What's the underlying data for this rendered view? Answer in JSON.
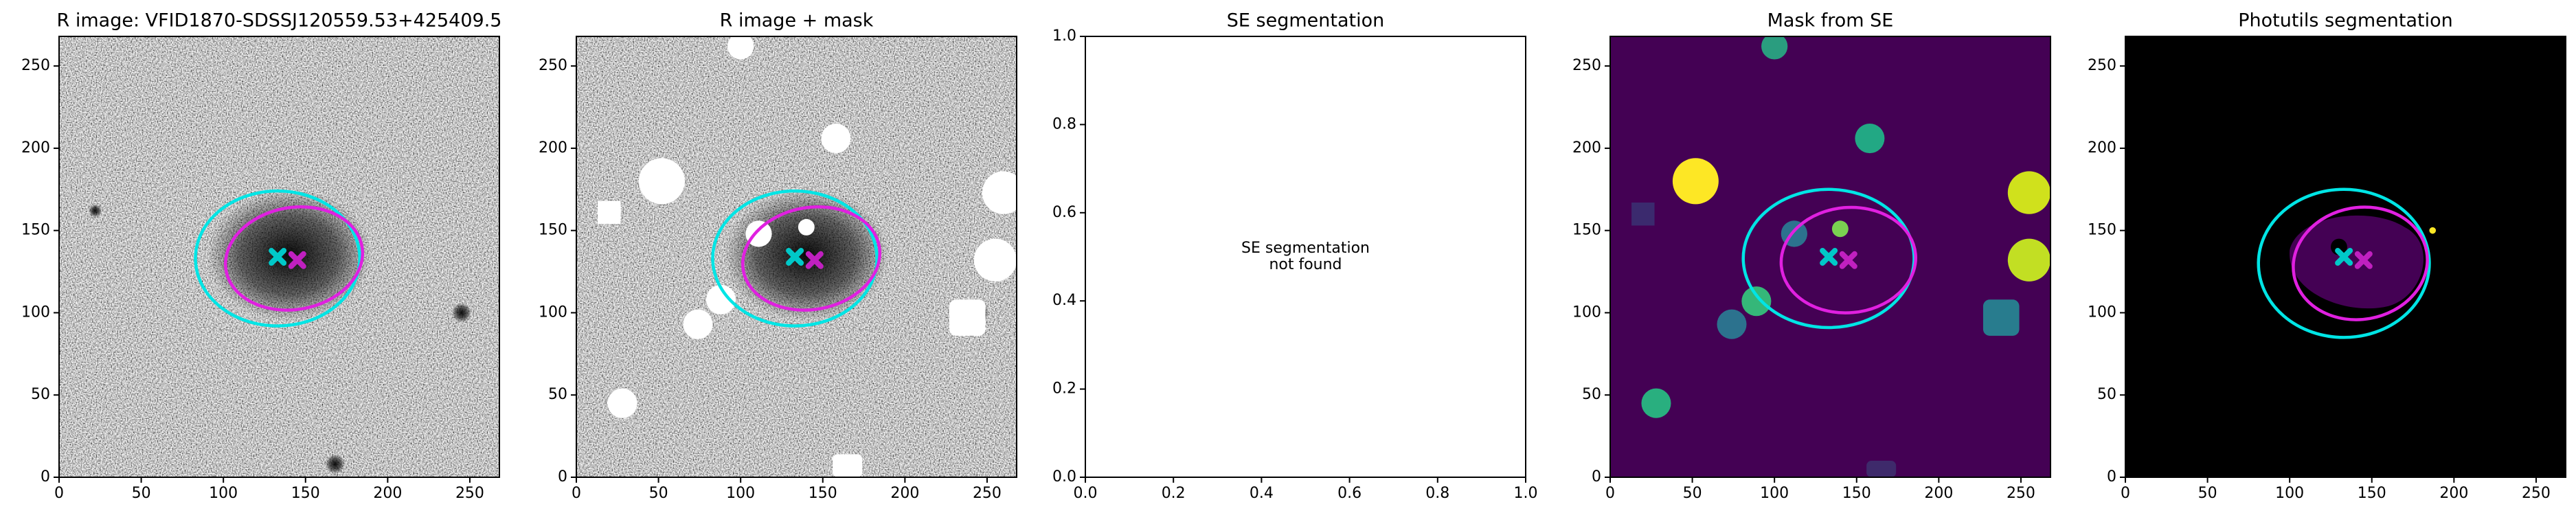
{
  "chart_data": [
    {
      "type": "image",
      "title": "R image: VFID1870-SDSSJ120559.53+425409.5",
      "background": "noise",
      "xlim": [
        0,
        268
      ],
      "ylim": [
        0,
        268
      ],
      "xticks": [
        0,
        50,
        100,
        150,
        200,
        250
      ],
      "yticks": [
        0,
        50,
        100,
        150,
        200,
        250
      ],
      "ellipses": [
        {
          "color": "#00e5e5",
          "x": 133,
          "y": 133,
          "width": 100,
          "height": 82,
          "angle": 0
        },
        {
          "color": "#e020e0",
          "x": 143,
          "y": 133,
          "width": 84,
          "height": 62,
          "angle": 10
        }
      ],
      "markers": [
        {
          "color": "#00c8c8",
          "x": 133,
          "y": 134
        },
        {
          "color": "#c020c0",
          "x": 145,
          "y": 132
        }
      ]
    },
    {
      "type": "image",
      "title": "R image + mask",
      "background": "noise-mask",
      "xlim": [
        0,
        268
      ],
      "ylim": [
        0,
        268
      ],
      "xticks": [
        0,
        50,
        100,
        150,
        200,
        250
      ],
      "yticks": [
        0,
        50,
        100,
        150,
        200,
        250
      ],
      "ellipses": [
        {
          "color": "#00e5e5",
          "x": 133,
          "y": 133,
          "width": 100,
          "height": 82,
          "angle": 0
        },
        {
          "color": "#e020e0",
          "x": 143,
          "y": 133,
          "width": 84,
          "height": 62,
          "angle": 10
        }
      ],
      "markers": [
        {
          "color": "#00c8c8",
          "x": 133,
          "y": 134
        },
        {
          "color": "#c020c0",
          "x": 145,
          "y": 132
        }
      ]
    },
    {
      "type": "empty",
      "title": "SE segmentation",
      "annotation": "SE segmentation\nnot found",
      "xlim": [
        0,
        1
      ],
      "ylim": [
        0,
        1
      ],
      "xticks": [
        {
          "value": 0,
          "label": "0.0"
        },
        {
          "value": 0.2,
          "label": "0.2"
        },
        {
          "value": 0.4,
          "label": "0.4"
        },
        {
          "value": 0.6,
          "label": "0.6"
        },
        {
          "value": 0.8,
          "label": "0.8"
        },
        {
          "value": 1,
          "label": "1.0"
        }
      ],
      "yticks": [
        {
          "value": 0,
          "label": "0.0"
        },
        {
          "value": 0.2,
          "label": "0.2"
        },
        {
          "value": 0.4,
          "label": "0.4"
        },
        {
          "value": 0.6,
          "label": "0.6"
        },
        {
          "value": 0.8,
          "label": "0.8"
        },
        {
          "value": 1,
          "label": "1.0"
        }
      ]
    },
    {
      "type": "image",
      "title": "Mask from SE",
      "background": "segmap",
      "xlim": [
        0,
        268
      ],
      "ylim": [
        0,
        268
      ],
      "xticks": [
        0,
        50,
        100,
        150,
        200,
        250
      ],
      "yticks": [
        0,
        50,
        100,
        150,
        200,
        250
      ],
      "ellipses": [
        {
          "color": "#00e5e5",
          "x": 133,
          "y": 133,
          "width": 104,
          "height": 84,
          "angle": 0
        },
        {
          "color": "#e020e0",
          "x": 145,
          "y": 132,
          "width": 82,
          "height": 64,
          "angle": 5
        }
      ],
      "markers": [
        {
          "color": "#00c8c8",
          "x": 133,
          "y": 134
        },
        {
          "color": "#c020c0",
          "x": 145,
          "y": 132
        }
      ]
    },
    {
      "type": "image",
      "title": "Photutils segmentation",
      "background": "segmap-black",
      "xlim": [
        0,
        268
      ],
      "ylim": [
        0,
        268
      ],
      "xticks": [
        0,
        50,
        100,
        150,
        200,
        250
      ],
      "yticks": [
        0,
        50,
        100,
        150,
        200,
        250
      ],
      "ellipses": [
        {
          "color": "#00e5e5",
          "x": 133,
          "y": 130,
          "width": 104,
          "height": 90,
          "angle": 0
        },
        {
          "color": "#e020e0",
          "x": 143,
          "y": 130,
          "width": 82,
          "height": 68,
          "angle": 10
        }
      ],
      "markers": [
        {
          "color": "#00c8c8",
          "x": 133,
          "y": 134
        },
        {
          "color": "#c020c0",
          "x": 145,
          "y": 132
        }
      ]
    }
  ]
}
